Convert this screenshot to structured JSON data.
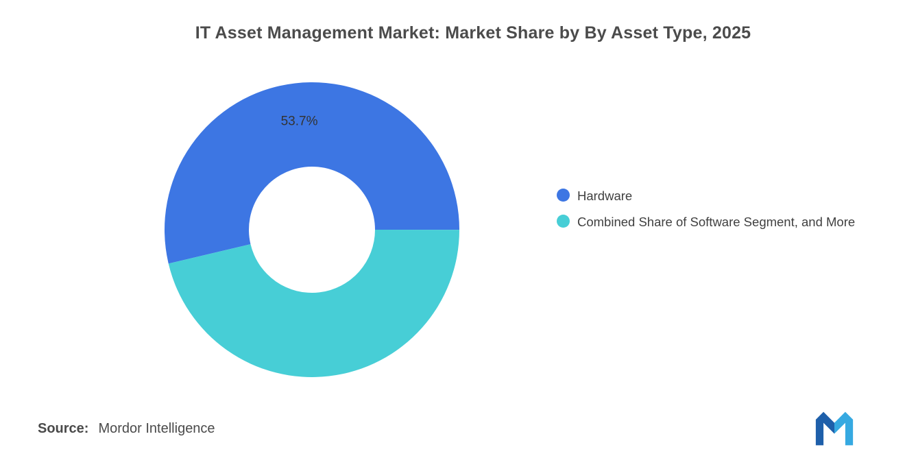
{
  "title": "IT Asset Management Market: Market Share by By Asset Type, 2025",
  "chart_data": {
    "type": "pie",
    "subtype": "donut",
    "title": "IT Asset Management Market: Market Share by By Asset Type, 2025",
    "labels": [
      "Hardware",
      "Combined Share of Software Segment, and More"
    ],
    "values": [
      53.7,
      46.3
    ],
    "colors": [
      "#3d76e3",
      "#47ced6"
    ],
    "data_labels": [
      "53.7%",
      ""
    ],
    "rotation_deg": 256.7,
    "inner_radius_ratio": 0.43,
    "legend_position": "right"
  },
  "legend": {
    "items": [
      {
        "label": "Hardware",
        "color": "#3d76e3"
      },
      {
        "label": "Combined Share of Software Segment, and More",
        "color": "#47ced6"
      }
    ]
  },
  "source": {
    "label": "Source:",
    "text": "Mordor Intelligence"
  }
}
